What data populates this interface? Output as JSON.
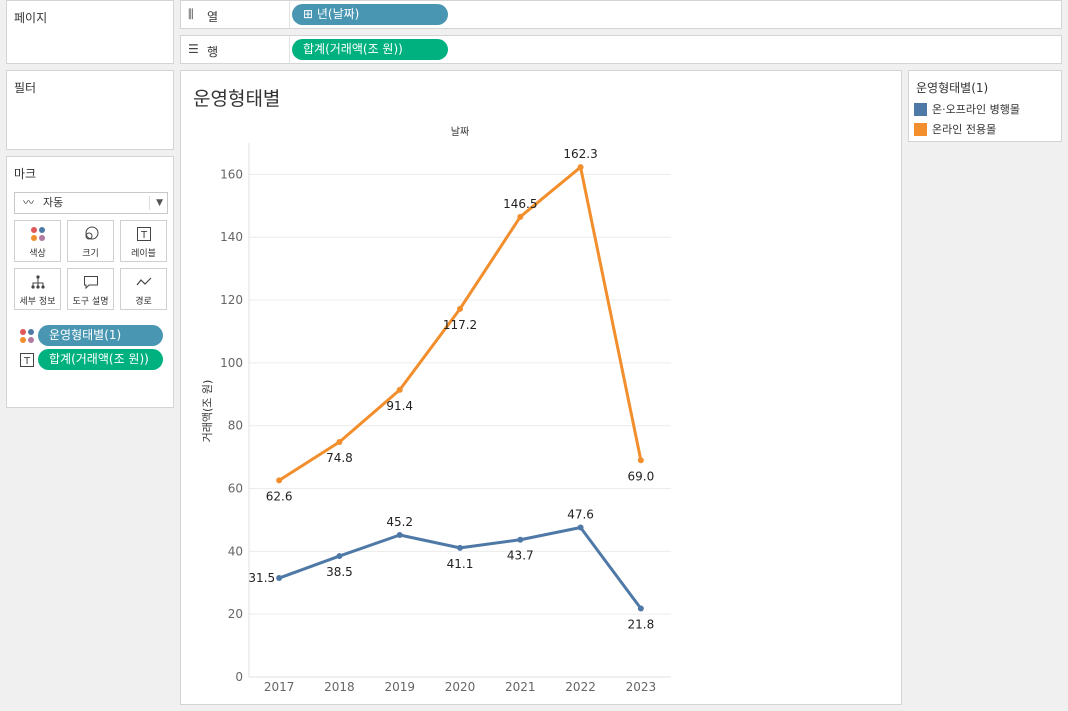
{
  "pages": {
    "title": "페이지"
  },
  "filters": {
    "title": "필터"
  },
  "columns_shelf": {
    "label": "열",
    "icon": "columns-icon",
    "pill": "⊞ 년(날짜)"
  },
  "rows_shelf": {
    "label": "행",
    "icon": "rows-icon",
    "pill": "합계(거래액(조 원))"
  },
  "marks": {
    "title": "마크",
    "mark_type": "자동",
    "buttons": [
      {
        "label": "색상",
        "icon": "color-icon"
      },
      {
        "label": "크기",
        "icon": "size-icon"
      },
      {
        "label": "레이블",
        "icon": "label-icon"
      },
      {
        "label": "세부 정보",
        "icon": "detail-icon"
      },
      {
        "label": "도구 설명",
        "icon": "tooltip-icon"
      },
      {
        "label": "경로",
        "icon": "path-icon"
      }
    ],
    "pills": [
      {
        "text": "운영형태별(1)",
        "icon": "color-icon"
      },
      {
        "text": "합계(거래액(조 원))",
        "icon": "label-icon"
      }
    ]
  },
  "view": {
    "title": "운영형태별"
  },
  "legend": {
    "title": "운영형태별(1)",
    "items": [
      {
        "label": "온·오프라인 병행몰",
        "color": "#4e79a7"
      },
      {
        "label": "온라인 전용몰",
        "color": "#f28e2b"
      }
    ]
  },
  "chart_data": {
    "type": "line",
    "title": "운영형태별",
    "x_header": "날짜",
    "ylabel": "거래액(조 원)",
    "categories": [
      "2017",
      "2018",
      "2019",
      "2020",
      "2021",
      "2022",
      "2023"
    ],
    "ylim": [
      0,
      170
    ],
    "yticks": [
      0,
      20,
      40,
      60,
      80,
      100,
      120,
      140,
      160
    ],
    "grid": true,
    "legend_position": "right",
    "series": [
      {
        "name": "온·오프라인 병행몰",
        "color": "#4e79a7",
        "values": [
          31.5,
          38.5,
          45.2,
          41.1,
          43.7,
          47.6,
          21.8
        ],
        "labels": [
          "31.5",
          "38.5",
          "45.2",
          "41.1",
          "43.7",
          "47.6",
          "21.8"
        ]
      },
      {
        "name": "온라인 전용몰",
        "color": "#f28e2b",
        "values": [
          62.6,
          74.8,
          91.4,
          117.2,
          146.5,
          162.3,
          69.0
        ],
        "labels": [
          "62.6",
          "74.8",
          "91.4",
          "117.2",
          "146.5",
          "162.3",
          "69.0"
        ]
      }
    ]
  }
}
